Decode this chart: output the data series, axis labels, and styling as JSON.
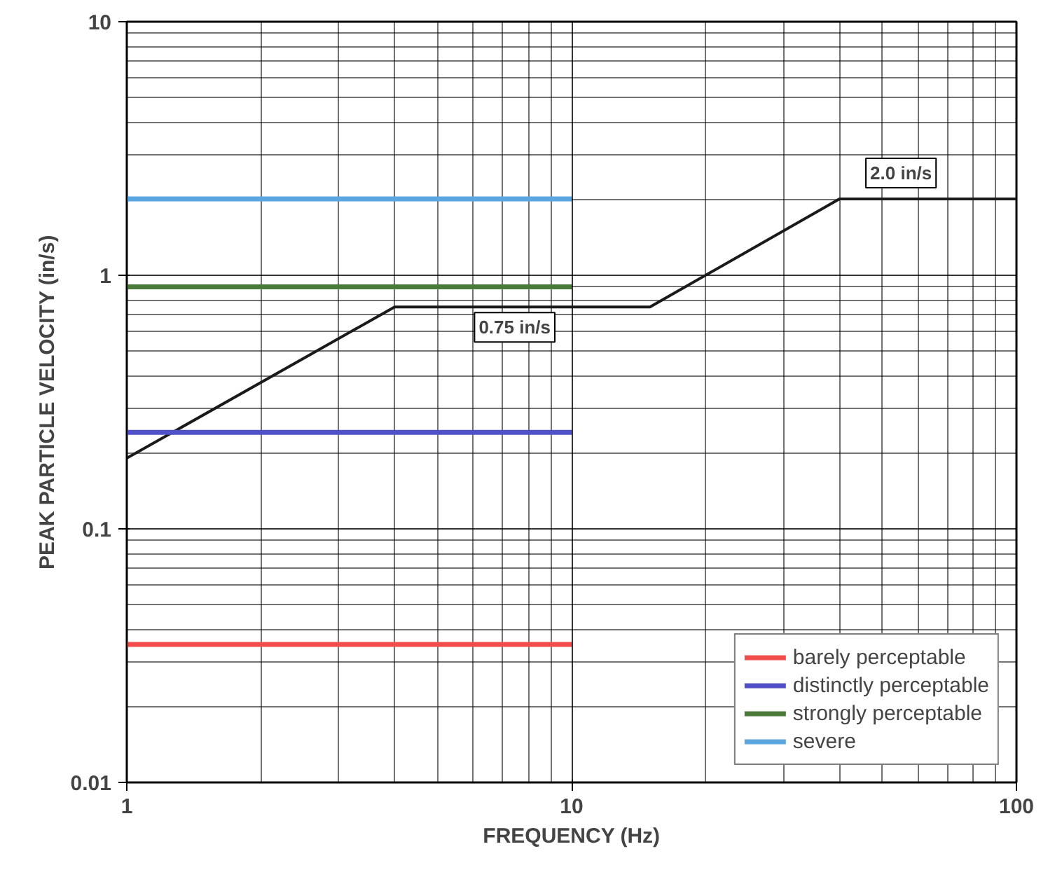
{
  "chart_data": {
    "type": "line",
    "xlabel": "FREQUENCY (Hz)",
    "ylabel": "PEAK PARTICLE VELOCITY (in/s)",
    "log": "xy",
    "xlim": [
      1,
      100
    ],
    "ylim": [
      0.01,
      10
    ],
    "xticks": [
      1,
      10,
      100
    ],
    "yticks": [
      {
        "value": 0.01,
        "label": "0.01"
      },
      {
        "value": 0.1,
        "label": "0.1"
      },
      {
        "value": 1,
        "label": "1"
      },
      {
        "value": 10,
        "label": "10"
      }
    ],
    "grid": true,
    "legend": "bottom right",
    "series": [
      {
        "x": [
          1,
          4,
          15,
          40,
          100
        ],
        "values": [
          0.19,
          0.75,
          0.75,
          2.0,
          2.0
        ],
        "color": "#1a1a1a"
      },
      {
        "name": "barely perceptable",
        "x": [
          1,
          10
        ],
        "values": [
          0.035,
          0.035
        ],
        "color": "#f04c4c"
      },
      {
        "name": "distinctly perceptable",
        "x": [
          1,
          10
        ],
        "values": [
          0.24,
          0.24
        ],
        "color": "#5050c8"
      },
      {
        "name": "strongly perceptable",
        "x": [
          1,
          10
        ],
        "values": [
          0.9,
          0.9
        ],
        "color": "#4a7a3a"
      },
      {
        "name": "severe",
        "x": [
          1,
          10
        ],
        "values": [
          2.0,
          2.0
        ],
        "color": "#5aa6e0"
      }
    ],
    "annotations": [
      {
        "text": "0.75 in/s",
        "x": 10,
        "y": 0.75
      },
      {
        "text": "2.0 in/s",
        "x": 55,
        "y": 2.0
      }
    ]
  }
}
